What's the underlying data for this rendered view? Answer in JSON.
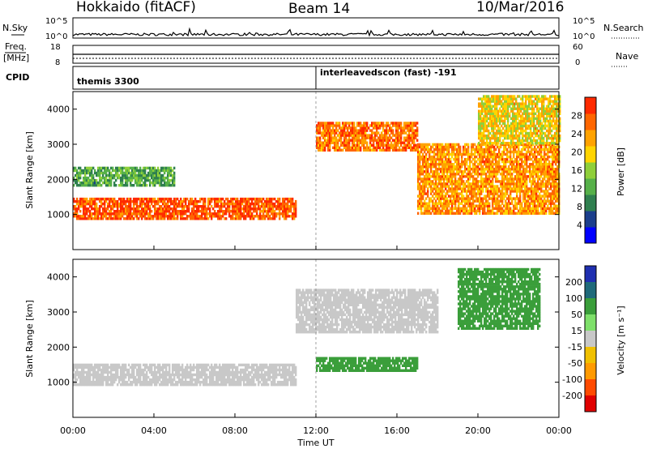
{
  "header": {
    "station": "Hokkaido (fitACF)",
    "beam": "Beam 14",
    "date": "10/Mar/2016"
  },
  "status_panels": {
    "nsky_label": "N.Sky",
    "nsky_ticks": [
      "10^5",
      "10^0"
    ],
    "nsearch_label": "N.Search",
    "freq_label_line1": "Freq.",
    "freq_label_line2": "[MHz]",
    "freq_ticks": [
      "18",
      "8"
    ],
    "nave_label": "Nave",
    "nave_ticks": [
      "60",
      "0"
    ],
    "cpid_label": "CPID",
    "cpid_left": "themis 3300",
    "cpid_right": "interleavedscon (fast) -191"
  },
  "chart_data": [
    {
      "type": "heatmap",
      "quantity": "power",
      "ylabel": "Slant Range [km]",
      "ylim": [
        0,
        4500
      ],
      "y_ticks": [
        1000,
        2000,
        3000,
        4000
      ],
      "x_ticks": [
        "00:00",
        "04:00",
        "08:00",
        "12:00",
        "16:00",
        "20:00",
        "00:00"
      ],
      "colorbar": {
        "label": "Power [dB]",
        "range": [
          0,
          32
        ],
        "ticks": [
          4,
          8,
          12,
          16,
          20,
          24,
          28
        ],
        "colors": [
          "#0000ff",
          "#1b3e8c",
          "#2f7f4f",
          "#56b049",
          "#8fcf3a",
          "#ffd400",
          "#ffa200",
          "#ff6600",
          "#ff2a00"
        ]
      },
      "regions": [
        {
          "t": [
            0,
            11
          ],
          "range": [
            850,
            1450
          ],
          "level": 28,
          "desc": "strong scatter band"
        },
        {
          "t": [
            0,
            5
          ],
          "range": [
            1800,
            2300
          ],
          "level": 12
        },
        {
          "t": [
            12,
            17
          ],
          "range": [
            2800,
            3600
          ],
          "level": 26
        },
        {
          "t": [
            17,
            24
          ],
          "range": [
            1000,
            3000
          ],
          "level": 24
        },
        {
          "t": [
            20,
            24
          ],
          "range": [
            3000,
            4400
          ],
          "level": 20
        }
      ]
    },
    {
      "type": "heatmap",
      "quantity": "velocity",
      "ylabel": "Slant Range [km]",
      "xlabel": "Time UT",
      "ylim": [
        0,
        4500
      ],
      "y_ticks": [
        1000,
        2000,
        3000,
        4000
      ],
      "x_ticks": [
        "00:00",
        "04:00",
        "08:00",
        "12:00",
        "16:00",
        "20:00",
        "00:00"
      ],
      "colorbar": {
        "label": "Velocity [m s⁻¹]",
        "tick_labels": [
          "200",
          "100",
          "50",
          "15",
          "-15",
          "-50",
          "-100",
          "-200"
        ],
        "colors": [
          "#1f2fb0",
          "#1f6a7a",
          "#3a9e3a",
          "#7ee06a",
          "#c8c8c8",
          "#f0c000",
          "#ff9a00",
          "#ff4a00",
          "#e00000"
        ]
      },
      "regions": [
        {
          "t": [
            0,
            11
          ],
          "range": [
            900,
            1500
          ],
          "velocity": 0,
          "desc": "ground scatter grey"
        },
        {
          "t": [
            11,
            18
          ],
          "range": [
            2400,
            3600
          ],
          "velocity": 0
        },
        {
          "t": [
            12,
            17
          ],
          "range": [
            1300,
            1700
          ],
          "velocity": 60
        },
        {
          "t": [
            19,
            23
          ],
          "range": [
            2500,
            4200
          ],
          "velocity": 60
        }
      ]
    }
  ]
}
